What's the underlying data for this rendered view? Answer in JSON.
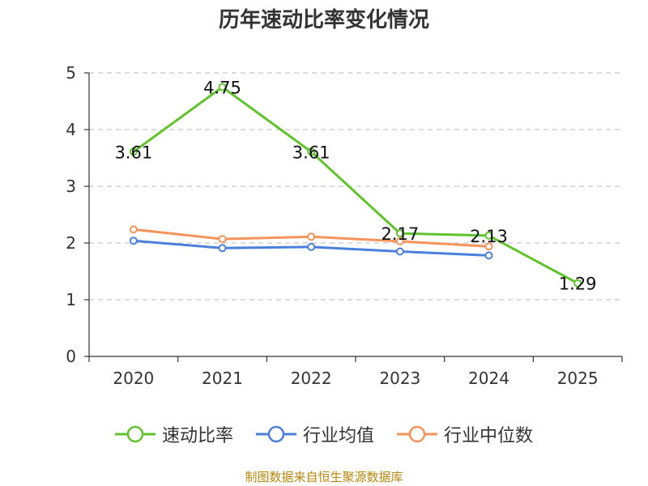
{
  "chart_data": {
    "type": "line",
    "title": "历年速动比率变化情况",
    "categories": [
      "2020",
      "2021",
      "2022",
      "2023",
      "2024",
      "2025"
    ],
    "ylim": [
      0,
      5
    ],
    "yticks": [
      0,
      1,
      2,
      3,
      4,
      5
    ],
    "grid": true,
    "legend_position": "bottom",
    "series": [
      {
        "name": "速动比率",
        "color": "#5fc42a",
        "values": [
          3.61,
          4.75,
          3.61,
          2.17,
          2.13,
          1.29
        ],
        "labels": [
          "3.61",
          "4.75",
          "3.61",
          "2.17",
          "2.13",
          "1.29"
        ]
      },
      {
        "name": "行业均值",
        "color": "#4a7fdc",
        "values": [
          2.04,
          1.91,
          1.93,
          1.85,
          1.78,
          null
        ]
      },
      {
        "name": "行业中位数",
        "color": "#f5935a",
        "values": [
          2.24,
          2.07,
          2.11,
          2.03,
          1.94,
          null
        ]
      }
    ]
  },
  "source": "制图数据来自恒生聚源数据库"
}
